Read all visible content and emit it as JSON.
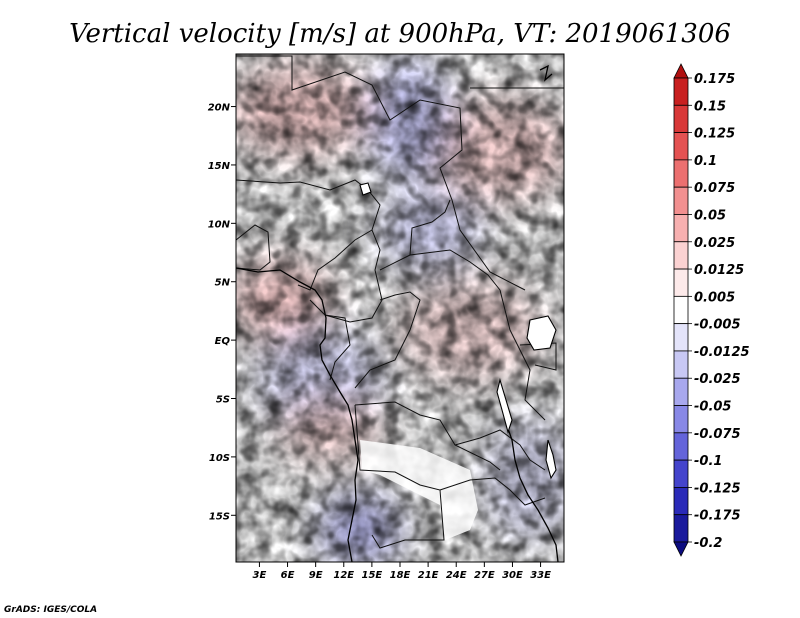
{
  "title": "Vertical velocity [m/s] at 900hPa, VT: 2019061306",
  "credit": "GrADS: IGES/COLA",
  "map": {
    "lon_range": [
      0.5,
      35.5
    ],
    "lat_range": [
      -19.0,
      24.5
    ],
    "lon_ticks": [
      {
        "value": 3,
        "label": "3E"
      },
      {
        "value": 6,
        "label": "6E"
      },
      {
        "value": 9,
        "label": "9E"
      },
      {
        "value": 12,
        "label": "12E"
      },
      {
        "value": 15,
        "label": "15E"
      },
      {
        "value": 18,
        "label": "18E"
      },
      {
        "value": 21,
        "label": "21E"
      },
      {
        "value": 24,
        "label": "24E"
      },
      {
        "value": 27,
        "label": "27E"
      },
      {
        "value": 30,
        "label": "30E"
      },
      {
        "value": 33,
        "label": "33E"
      }
    ],
    "lat_ticks": [
      {
        "value": 20,
        "label": "20N"
      },
      {
        "value": 15,
        "label": "15N"
      },
      {
        "value": 10,
        "label": "10N"
      },
      {
        "value": 5,
        "label": "5N"
      },
      {
        "value": 0,
        "label": "EQ"
      },
      {
        "value": -5,
        "label": "5S"
      },
      {
        "value": -10,
        "label": "10S"
      },
      {
        "value": -15,
        "label": "15S"
      }
    ]
  },
  "colorbar": {
    "levels": [
      "0.175",
      "0.15",
      "0.125",
      "0.1",
      "0.075",
      "0.05",
      "0.025",
      "0.0125",
      "0.005",
      "-0.005",
      "-0.0125",
      "-0.025",
      "-0.05",
      "-0.075",
      "-0.1",
      "-0.125",
      "-0.175",
      "-0.2"
    ],
    "colors": [
      "#b01010",
      "#c82020",
      "#d83838",
      "#e45252",
      "#ec7070",
      "#f29090",
      "#f7b0b0",
      "#fbd2d2",
      "#fdeaea",
      "#ffffff",
      "#e4e4fa",
      "#c8c8f4",
      "#a8a8ee",
      "#8888e6",
      "#6464da",
      "#4444cc",
      "#2a2ab8",
      "#1a1a9c",
      "#0c0c80"
    ]
  },
  "colors": {
    "background": "#ffffff",
    "frame": "#000000",
    "border": "#111111",
    "coast": "#000000"
  }
}
